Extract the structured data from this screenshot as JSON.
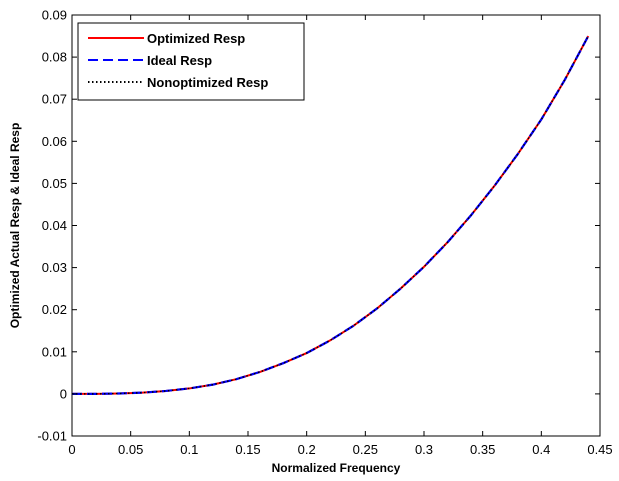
{
  "chart_data": {
    "type": "line",
    "title": "",
    "xlabel": "Normalized Frequency",
    "ylabel": "Optimized Actual Resp  &  Ideal Resp",
    "xlim": [
      0,
      0.45
    ],
    "ylim": [
      -0.01,
      0.09
    ],
    "xticks": [
      0,
      0.05,
      0.1,
      0.15,
      0.2,
      0.25,
      0.3,
      0.35,
      0.4,
      0.45
    ],
    "xtick_labels": [
      "0",
      "0.05",
      "0.1",
      "0.15",
      "0.2",
      "0.25",
      "0.3",
      "0.35",
      "0.4",
      "0.45"
    ],
    "yticks": [
      -0.01,
      0,
      0.01,
      0.02,
      0.03,
      0.04,
      0.05,
      0.06,
      0.07,
      0.08,
      0.09
    ],
    "ytick_labels": [
      "-0.01",
      "0",
      "0.01",
      "0.02",
      "0.03",
      "0.04",
      "0.05",
      "0.06",
      "0.07",
      "0.08",
      "0.09"
    ],
    "grid": false,
    "legend_position": "top-left",
    "x": [
      0,
      0.02,
      0.04,
      0.06,
      0.08,
      0.1,
      0.12,
      0.14,
      0.16,
      0.18,
      0.2,
      0.22,
      0.24,
      0.26,
      0.28,
      0.3,
      0.32,
      0.34,
      0.36,
      0.38,
      0.4,
      0.42,
      0.44
    ],
    "series": [
      {
        "name": "Optimized Resp",
        "color": "#ff0000",
        "style": "solid",
        "values": [
          0,
          0,
          0.0001,
          0.0003,
          0.0007,
          0.0013,
          0.0022,
          0.0035,
          0.0052,
          0.0073,
          0.0097,
          0.0127,
          0.0162,
          0.0203,
          0.025,
          0.0302,
          0.036,
          0.0424,
          0.0494,
          0.057,
          0.0652,
          0.0746,
          0.085
        ]
      },
      {
        "name": "Ideal Resp",
        "color": "#0000ff",
        "style": "dashed",
        "values": [
          0,
          0,
          0.0001,
          0.0003,
          0.0007,
          0.0013,
          0.0022,
          0.0035,
          0.0052,
          0.0073,
          0.0097,
          0.0127,
          0.0162,
          0.0203,
          0.025,
          0.0302,
          0.036,
          0.0424,
          0.0494,
          0.057,
          0.0652,
          0.0746,
          0.085
        ]
      },
      {
        "name": "Nonoptimized Resp",
        "color": "#000000",
        "style": "dotted",
        "values": [
          0,
          0,
          0.0001,
          0.0003,
          0.0007,
          0.0013,
          0.0022,
          0.0035,
          0.0052,
          0.0073,
          0.0097,
          0.0127,
          0.0162,
          0.0203,
          0.025,
          0.0302,
          0.036,
          0.0424,
          0.0494,
          0.057,
          0.0652,
          0.0746,
          0.085
        ]
      }
    ]
  }
}
